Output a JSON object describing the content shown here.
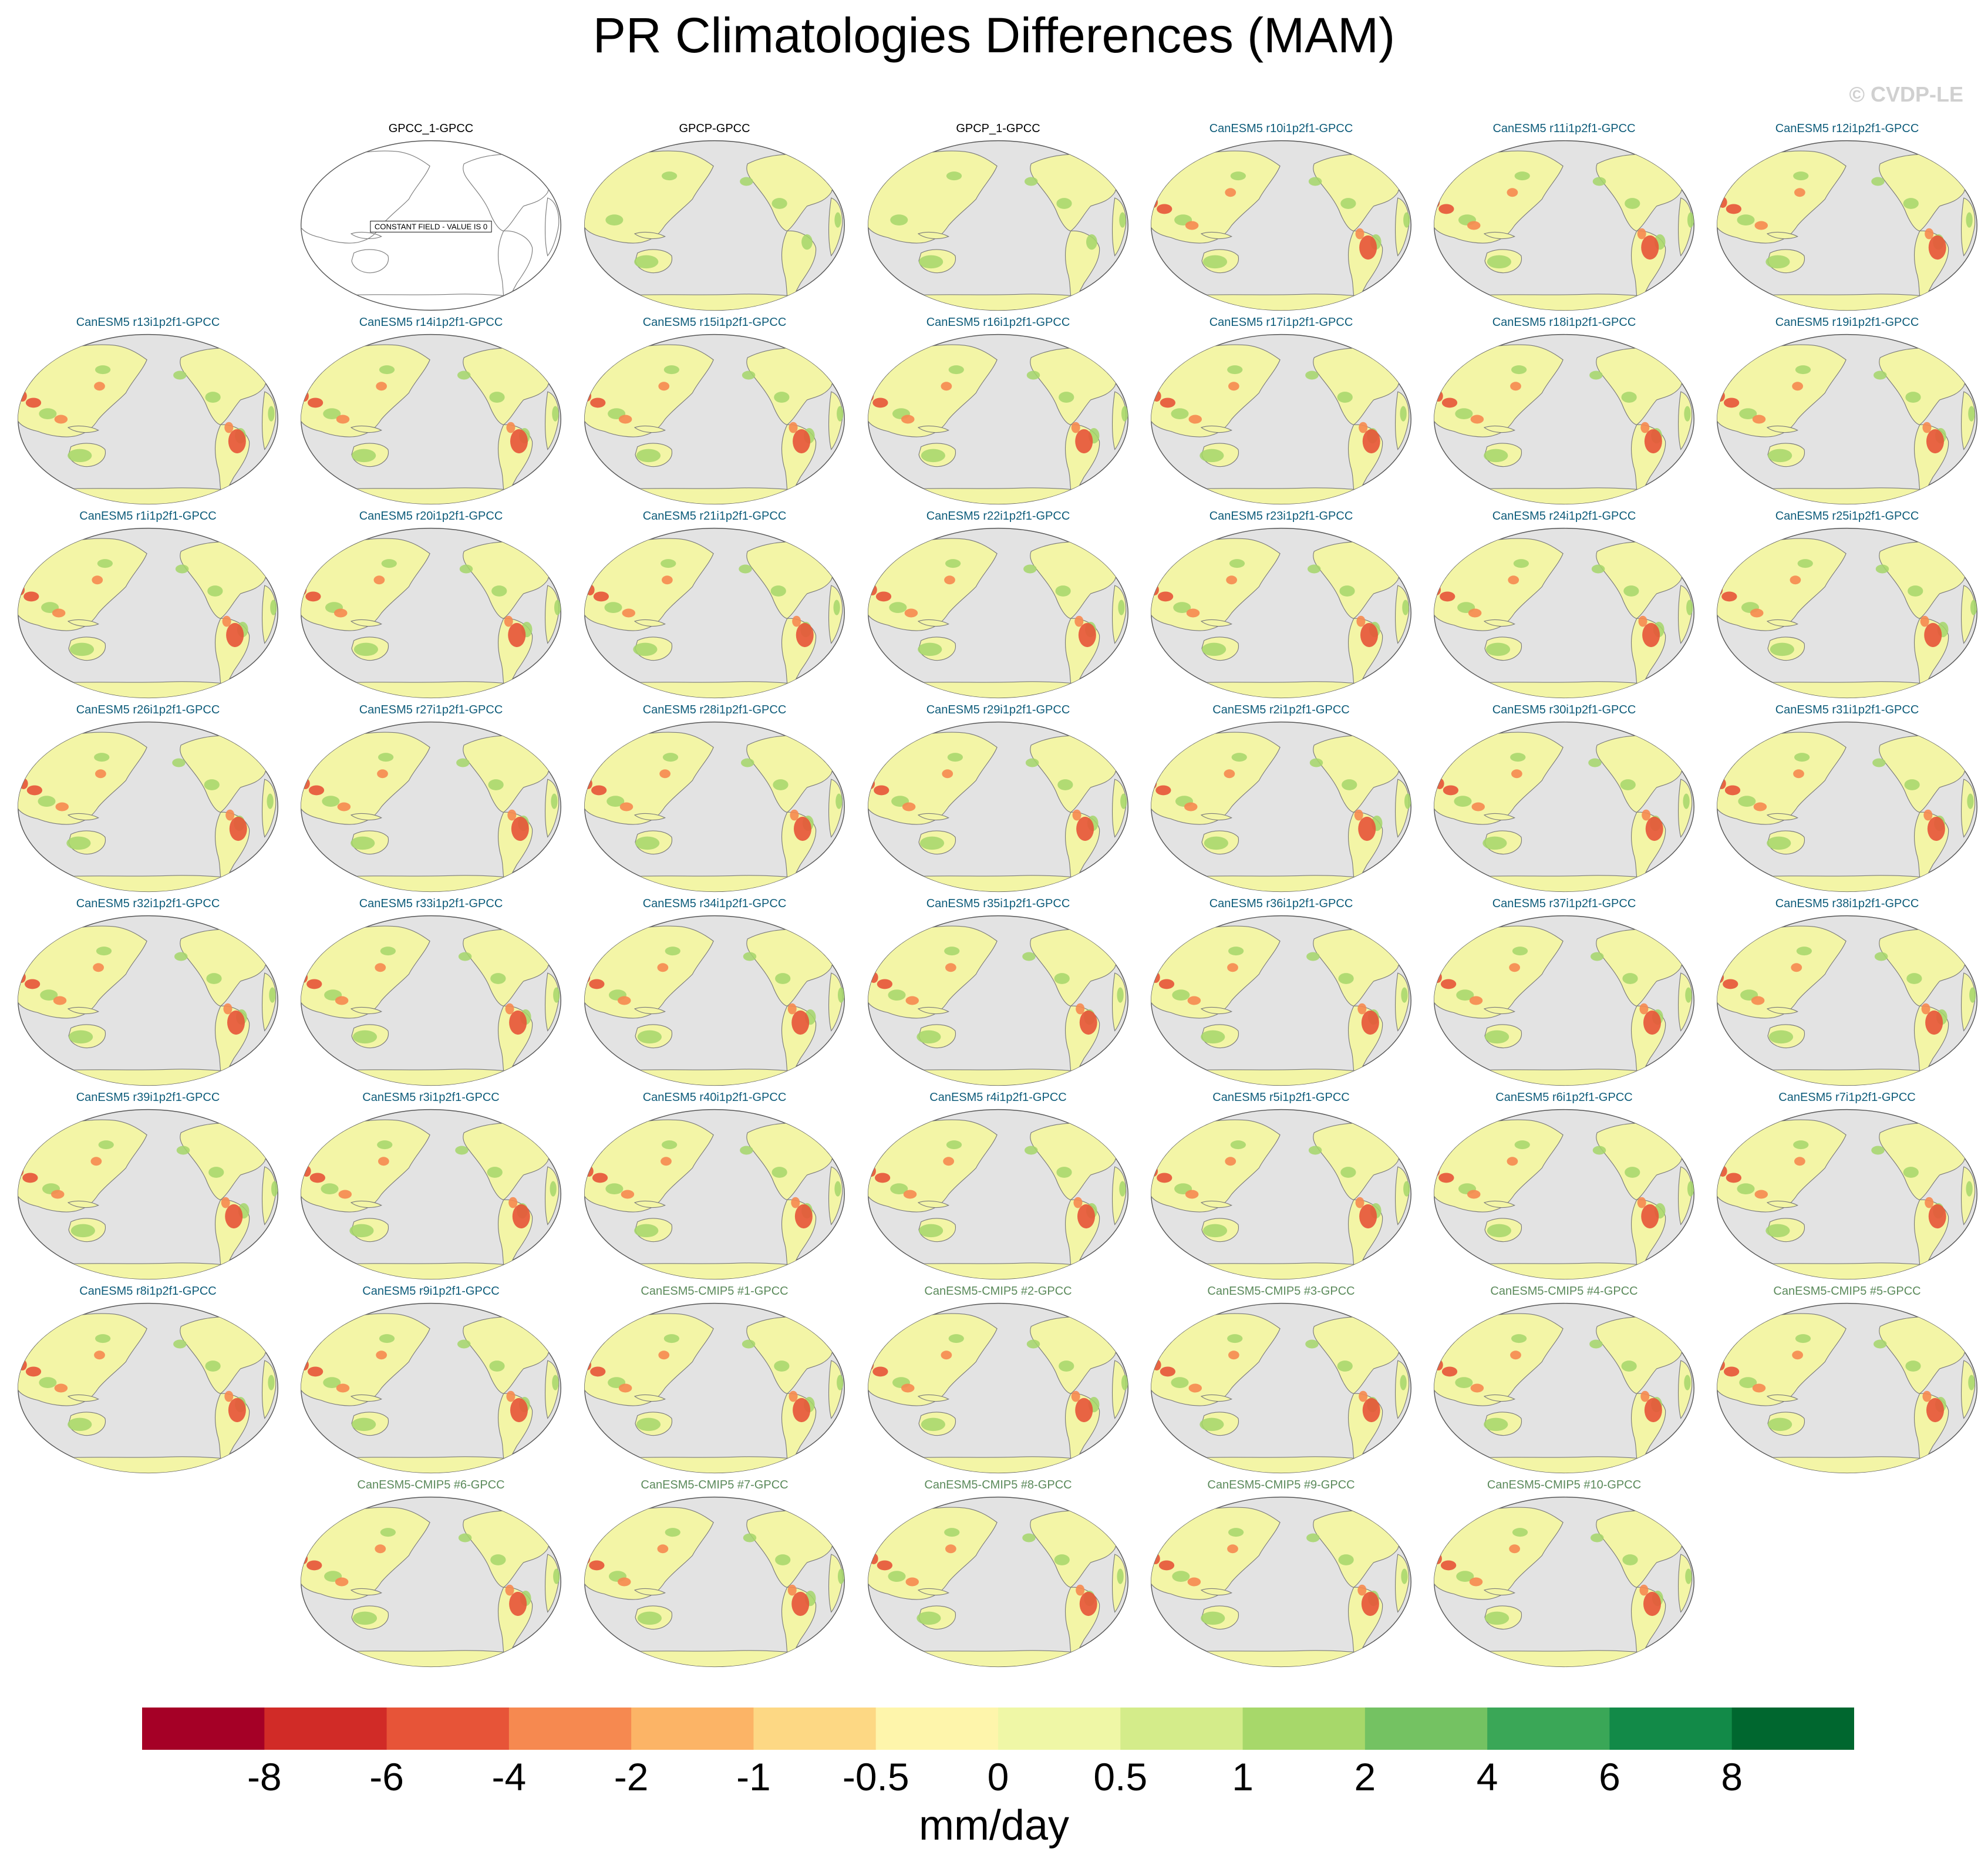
{
  "title": "PR Climatologies Differences (MAM)",
  "copyright": "© CVDP-LE",
  "panels": [
    {
      "label": "GPCC_1-GPCC",
      "group": "obs",
      "constant_field": true
    },
    {
      "label": "GPCP-GPCC",
      "group": "obs"
    },
    {
      "label": "GPCP_1-GPCC",
      "group": "obs"
    },
    {
      "label": "CanESM5 r10i1p2f1-GPCC",
      "group": "le"
    },
    {
      "label": "CanESM5 r11i1p2f1-GPCC",
      "group": "le"
    },
    {
      "label": "CanESM5 r12i1p2f1-GPCC",
      "group": "le"
    },
    {
      "label": "CanESM5 r13i1p2f1-GPCC",
      "group": "le"
    },
    {
      "label": "CanESM5 r14i1p2f1-GPCC",
      "group": "le"
    },
    {
      "label": "CanESM5 r15i1p2f1-GPCC",
      "group": "le"
    },
    {
      "label": "CanESM5 r16i1p2f1-GPCC",
      "group": "le"
    },
    {
      "label": "CanESM5 r17i1p2f1-GPCC",
      "group": "le"
    },
    {
      "label": "CanESM5 r18i1p2f1-GPCC",
      "group": "le"
    },
    {
      "label": "CanESM5 r19i1p2f1-GPCC",
      "group": "le"
    },
    {
      "label": "CanESM5 r1i1p2f1-GPCC",
      "group": "le"
    },
    {
      "label": "CanESM5 r20i1p2f1-GPCC",
      "group": "le"
    },
    {
      "label": "CanESM5 r21i1p2f1-GPCC",
      "group": "le"
    },
    {
      "label": "CanESM5 r22i1p2f1-GPCC",
      "group": "le"
    },
    {
      "label": "CanESM5 r23i1p2f1-GPCC",
      "group": "le"
    },
    {
      "label": "CanESM5 r24i1p2f1-GPCC",
      "group": "le"
    },
    {
      "label": "CanESM5 r25i1p2f1-GPCC",
      "group": "le"
    },
    {
      "label": "CanESM5 r26i1p2f1-GPCC",
      "group": "le"
    },
    {
      "label": "CanESM5 r27i1p2f1-GPCC",
      "group": "le"
    },
    {
      "label": "CanESM5 r28i1p2f1-GPCC",
      "group": "le"
    },
    {
      "label": "CanESM5 r29i1p2f1-GPCC",
      "group": "le"
    },
    {
      "label": "CanESM5 r2i1p2f1-GPCC",
      "group": "le"
    },
    {
      "label": "CanESM5 r30i1p2f1-GPCC",
      "group": "le"
    },
    {
      "label": "CanESM5 r31i1p2f1-GPCC",
      "group": "le"
    },
    {
      "label": "CanESM5 r32i1p2f1-GPCC",
      "group": "le"
    },
    {
      "label": "CanESM5 r33i1p2f1-GPCC",
      "group": "le"
    },
    {
      "label": "CanESM5 r34i1p2f1-GPCC",
      "group": "le"
    },
    {
      "label": "CanESM5 r35i1p2f1-GPCC",
      "group": "le"
    },
    {
      "label": "CanESM5 r36i1p2f1-GPCC",
      "group": "le"
    },
    {
      "label": "CanESM5 r37i1p2f1-GPCC",
      "group": "le"
    },
    {
      "label": "CanESM5 r38i1p2f1-GPCC",
      "group": "le"
    },
    {
      "label": "CanESM5 r39i1p2f1-GPCC",
      "group": "le"
    },
    {
      "label": "CanESM5 r3i1p2f1-GPCC",
      "group": "le"
    },
    {
      "label": "CanESM5 r40i1p2f1-GPCC",
      "group": "le"
    },
    {
      "label": "CanESM5 r4i1p2f1-GPCC",
      "group": "le"
    },
    {
      "label": "CanESM5 r5i1p2f1-GPCC",
      "group": "le"
    },
    {
      "label": "CanESM5 r6i1p2f1-GPCC",
      "group": "le"
    },
    {
      "label": "CanESM5 r7i1p2f1-GPCC",
      "group": "le"
    },
    {
      "label": "CanESM5 r8i1p2f1-GPCC",
      "group": "le"
    },
    {
      "label": "CanESM5 r9i1p2f1-GPCC",
      "group": "le"
    },
    {
      "label": "CanESM5-CMIP5 #1-GPCC",
      "group": "cmip"
    },
    {
      "label": "CanESM5-CMIP5 #2-GPCC",
      "group": "cmip"
    },
    {
      "label": "CanESM5-CMIP5 #3-GPCC",
      "group": "cmip"
    },
    {
      "label": "CanESM5-CMIP5 #4-GPCC",
      "group": "cmip"
    },
    {
      "label": "CanESM5-CMIP5 #5-GPCC",
      "group": "cmip"
    },
    {
      "label": "CanESM5-CMIP5 #6-GPCC",
      "group": "cmip"
    },
    {
      "label": "CanESM5-CMIP5 #7-GPCC",
      "group": "cmip"
    },
    {
      "label": "CanESM5-CMIP5 #8-GPCC",
      "group": "cmip"
    },
    {
      "label": "CanESM5-CMIP5 #9-GPCC",
      "group": "cmip"
    },
    {
      "label": "CanESM5-CMIP5 #10-GPCC",
      "group": "cmip"
    }
  ],
  "constant_field_text": "CONSTANT FIELD - VALUE IS 0",
  "colorbar": {
    "labels": [
      "-8",
      "-6",
      "-4",
      "-2",
      "-1",
      "-0.5",
      "0",
      "0.5",
      "1",
      "2",
      "4",
      "6",
      "8"
    ],
    "colors": [
      "#a50026",
      "#d12b27",
      "#e75438",
      "#f68950",
      "#fcb466",
      "#fdd884",
      "#fef5ab",
      "#eff7a6",
      "#d4ec8a",
      "#a7d86a",
      "#74c262",
      "#3aa757",
      "#128a48",
      "#00672f"
    ],
    "units": "mm/day"
  },
  "map_colors": {
    "ocean": "#e3e3e3",
    "coast": "#7a7a7a",
    "land_base": "#f3f5a6",
    "land_green": "#a5d66a",
    "land_red": "#e75438",
    "land_orange": "#f68950"
  }
}
